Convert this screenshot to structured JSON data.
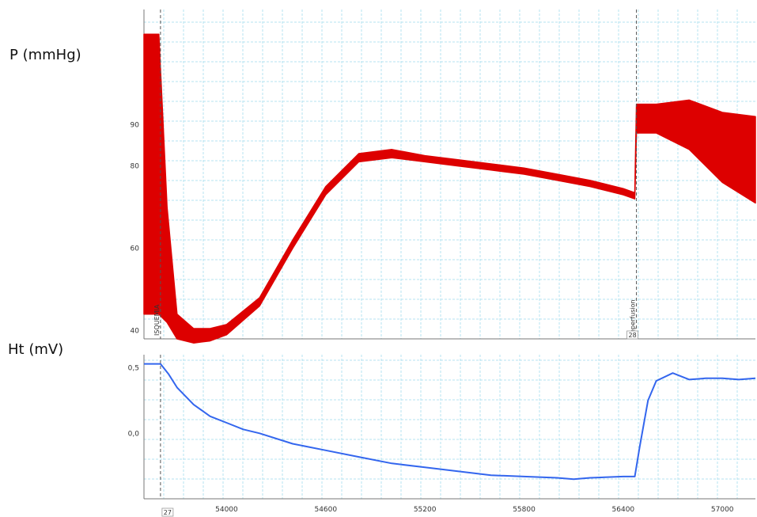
{
  "chart_data": [
    {
      "type": "line",
      "ylabel": "P (mmHg)",
      "yticks": [
        40,
        60,
        80,
        90
      ],
      "ylim": [
        38,
        118
      ],
      "xlim": [
        53500,
        57200
      ],
      "grid": true,
      "color": "#dd0000",
      "markers": [
        {
          "label": "ISQUEMIA",
          "x": 53600
        },
        {
          "label": "reperfusion",
          "x": 56480
        },
        {
          "label": "28",
          "x": 56480
        }
      ],
      "series": [
        {
          "band_x": [
            53500,
            53590,
            53640,
            53700,
            53800,
            53900,
            54000,
            54200,
            54400,
            54600,
            54800,
            55000,
            55200,
            55400,
            55600,
            55800,
            56000,
            56200,
            56400,
            56470,
            56480,
            56600,
            56800,
            57000,
            57200
          ],
          "upper": [
            112,
            112,
            70,
            44,
            40.5,
            40.5,
            41.5,
            48,
            62,
            75,
            83,
            84,
            82.5,
            81.5,
            80.5,
            79.5,
            78,
            76.5,
            74.5,
            73.5,
            95,
            95,
            96,
            93,
            92
          ],
          "lower": [
            44,
            44,
            42,
            38,
            37,
            37.5,
            39,
            46,
            60,
            73,
            81,
            82,
            81,
            80,
            79,
            78,
            76.5,
            75,
            73,
            72,
            88,
            88,
            84,
            76,
            71
          ]
        }
      ]
    },
    {
      "type": "line",
      "ylabel": "Ht (mV)",
      "yticks": [
        "0,5",
        "0,0"
      ],
      "ytick_values": [
        0.5,
        0.0
      ],
      "ylim": [
        -0.5,
        0.6
      ],
      "xlim": [
        53500,
        57200
      ],
      "xticks": [
        54000,
        54600,
        55200,
        55800,
        56400,
        57000
      ],
      "grid": true,
      "color": "#3366ee",
      "markers": [
        {
          "label": "27",
          "x": 53600
        }
      ],
      "series": [
        {
          "x": [
            53500,
            53600,
            53650,
            53700,
            53800,
            53900,
            54000,
            54100,
            54200,
            54400,
            54600,
            54800,
            55000,
            55200,
            55400,
            55600,
            55800,
            56000,
            56100,
            56200,
            56400,
            56470,
            56500,
            56550,
            56600,
            56700,
            56800,
            56900,
            57000,
            57100,
            57200
          ],
          "y": [
            0.53,
            0.53,
            0.45,
            0.35,
            0.22,
            0.13,
            0.08,
            0.03,
            0.0,
            -0.08,
            -0.13,
            -0.18,
            -0.23,
            -0.26,
            -0.29,
            -0.32,
            -0.33,
            -0.34,
            -0.35,
            -0.34,
            -0.33,
            -0.33,
            -0.1,
            0.25,
            0.4,
            0.46,
            0.41,
            0.42,
            0.42,
            0.41,
            0.42
          ]
        }
      ]
    }
  ]
}
